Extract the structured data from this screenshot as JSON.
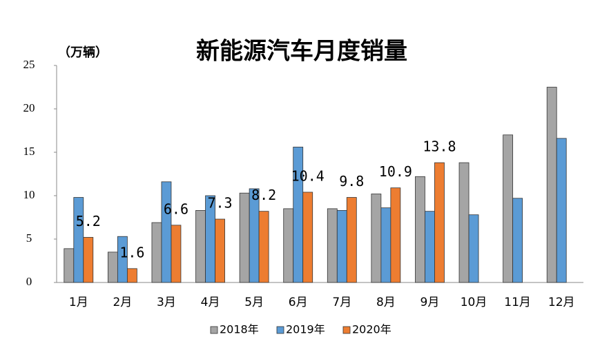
{
  "chart_data": {
    "type": "bar",
    "title": "新能源汽车月度销量",
    "y_label": "（万辆）",
    "categories": [
      "1月",
      "2月",
      "3月",
      "4月",
      "5月",
      "6月",
      "7月",
      "8月",
      "9月",
      "10月",
      "11月",
      "12月"
    ],
    "series": [
      {
        "name": "2018年",
        "color": "#a5a5a5",
        "values": [
          3.9,
          3.5,
          6.9,
          8.3,
          10.3,
          8.5,
          8.5,
          10.2,
          12.2,
          13.8,
          17.0,
          22.5
        ]
      },
      {
        "name": "2019年",
        "color": "#5b9bd5",
        "values": [
          9.8,
          5.3,
          11.6,
          10.0,
          10.8,
          15.6,
          8.3,
          8.6,
          8.2,
          7.8,
          9.7,
          16.6
        ]
      },
      {
        "name": "2020年",
        "color": "#ed7d31",
        "values": [
          5.2,
          1.6,
          6.6,
          7.3,
          8.2,
          10.4,
          9.8,
          10.9,
          13.8,
          null,
          null,
          null
        ]
      }
    ],
    "data_labels_series": 2,
    "ylim": [
      0,
      25
    ],
    "yticks": [
      0,
      5,
      10,
      15,
      20,
      25
    ]
  }
}
